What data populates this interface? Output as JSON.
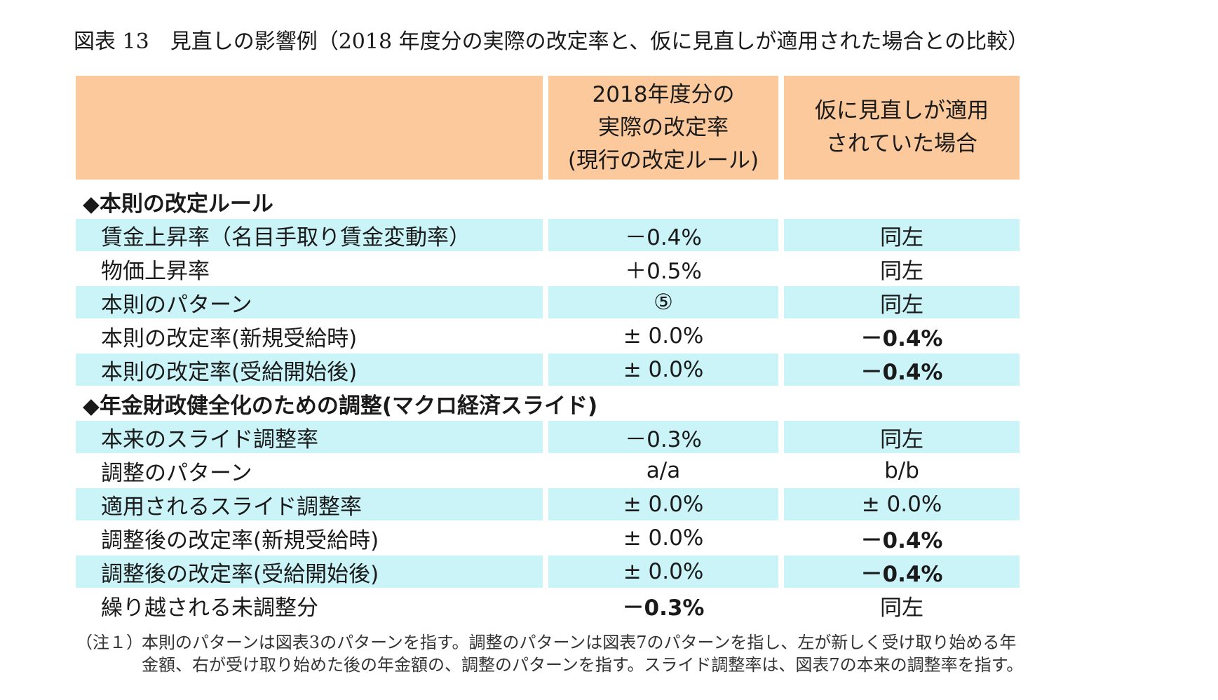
{
  "title": "図表 13　見直しの影響例（2018 年度分の実際の改定率と、仮に見直しが適用された場合との比較）",
  "header": {
    "col1_line1": "2018年度分の",
    "col1_line2": "実際の改定率",
    "col1_line3": "(現行の改定ルール)",
    "col2_line1": "仮に見直しが適用",
    "col2_line2": "されていた場合"
  },
  "section1": {
    "title": "◆本則の改定ルール",
    "rows": [
      {
        "label": "賃金上昇率（名目手取り賃金変動率）",
        "actual": "－0.4%",
        "revised": "同左"
      },
      {
        "label": "物価上昇率",
        "actual": "＋0.5%",
        "revised": "同左"
      },
      {
        "label": "本則のパターン",
        "actual": "⑤",
        "revised": "同左"
      },
      {
        "label": "本則の改定率(新規受給時)",
        "actual": "± 0.0%",
        "revised": "－0.4%"
      },
      {
        "label": "本則の改定率(受給開始後)",
        "actual": "± 0.0%",
        "revised": "－0.4%"
      }
    ]
  },
  "section2": {
    "title": "◆年金財政健全化のための調整(マクロ経済スライド)",
    "rows": [
      {
        "label": "本来のスライド調整率",
        "actual": "－0.3%",
        "revised": "同左"
      },
      {
        "label": "調整のパターン",
        "actual": "a/a",
        "revised": "b/b"
      },
      {
        "label": "適用されるスライド調整率",
        "actual": "± 0.0%",
        "revised": "± 0.0%"
      },
      {
        "label": "調整後の改定率(新規受給時)",
        "actual": "± 0.0%",
        "revised": "－0.4%"
      },
      {
        "label": "調整後の改定率(受給開始後)",
        "actual": "± 0.0%",
        "revised": "－0.4%"
      },
      {
        "label": "繰り越される未調整分",
        "actual": "－0.3%",
        "revised": "同左"
      }
    ]
  },
  "note": {
    "head": "（注１）",
    "line1": "本則のパターンは図表3のパターンを指す。調整のパターンは図表7のパターンを指し、左が新しく受け取り始める年",
    "line2": "金額、右が受け取り始めた後の年金額の、調整のパターンを指す。スライド調整率は、図表7の本来の調整率を指す。"
  }
}
